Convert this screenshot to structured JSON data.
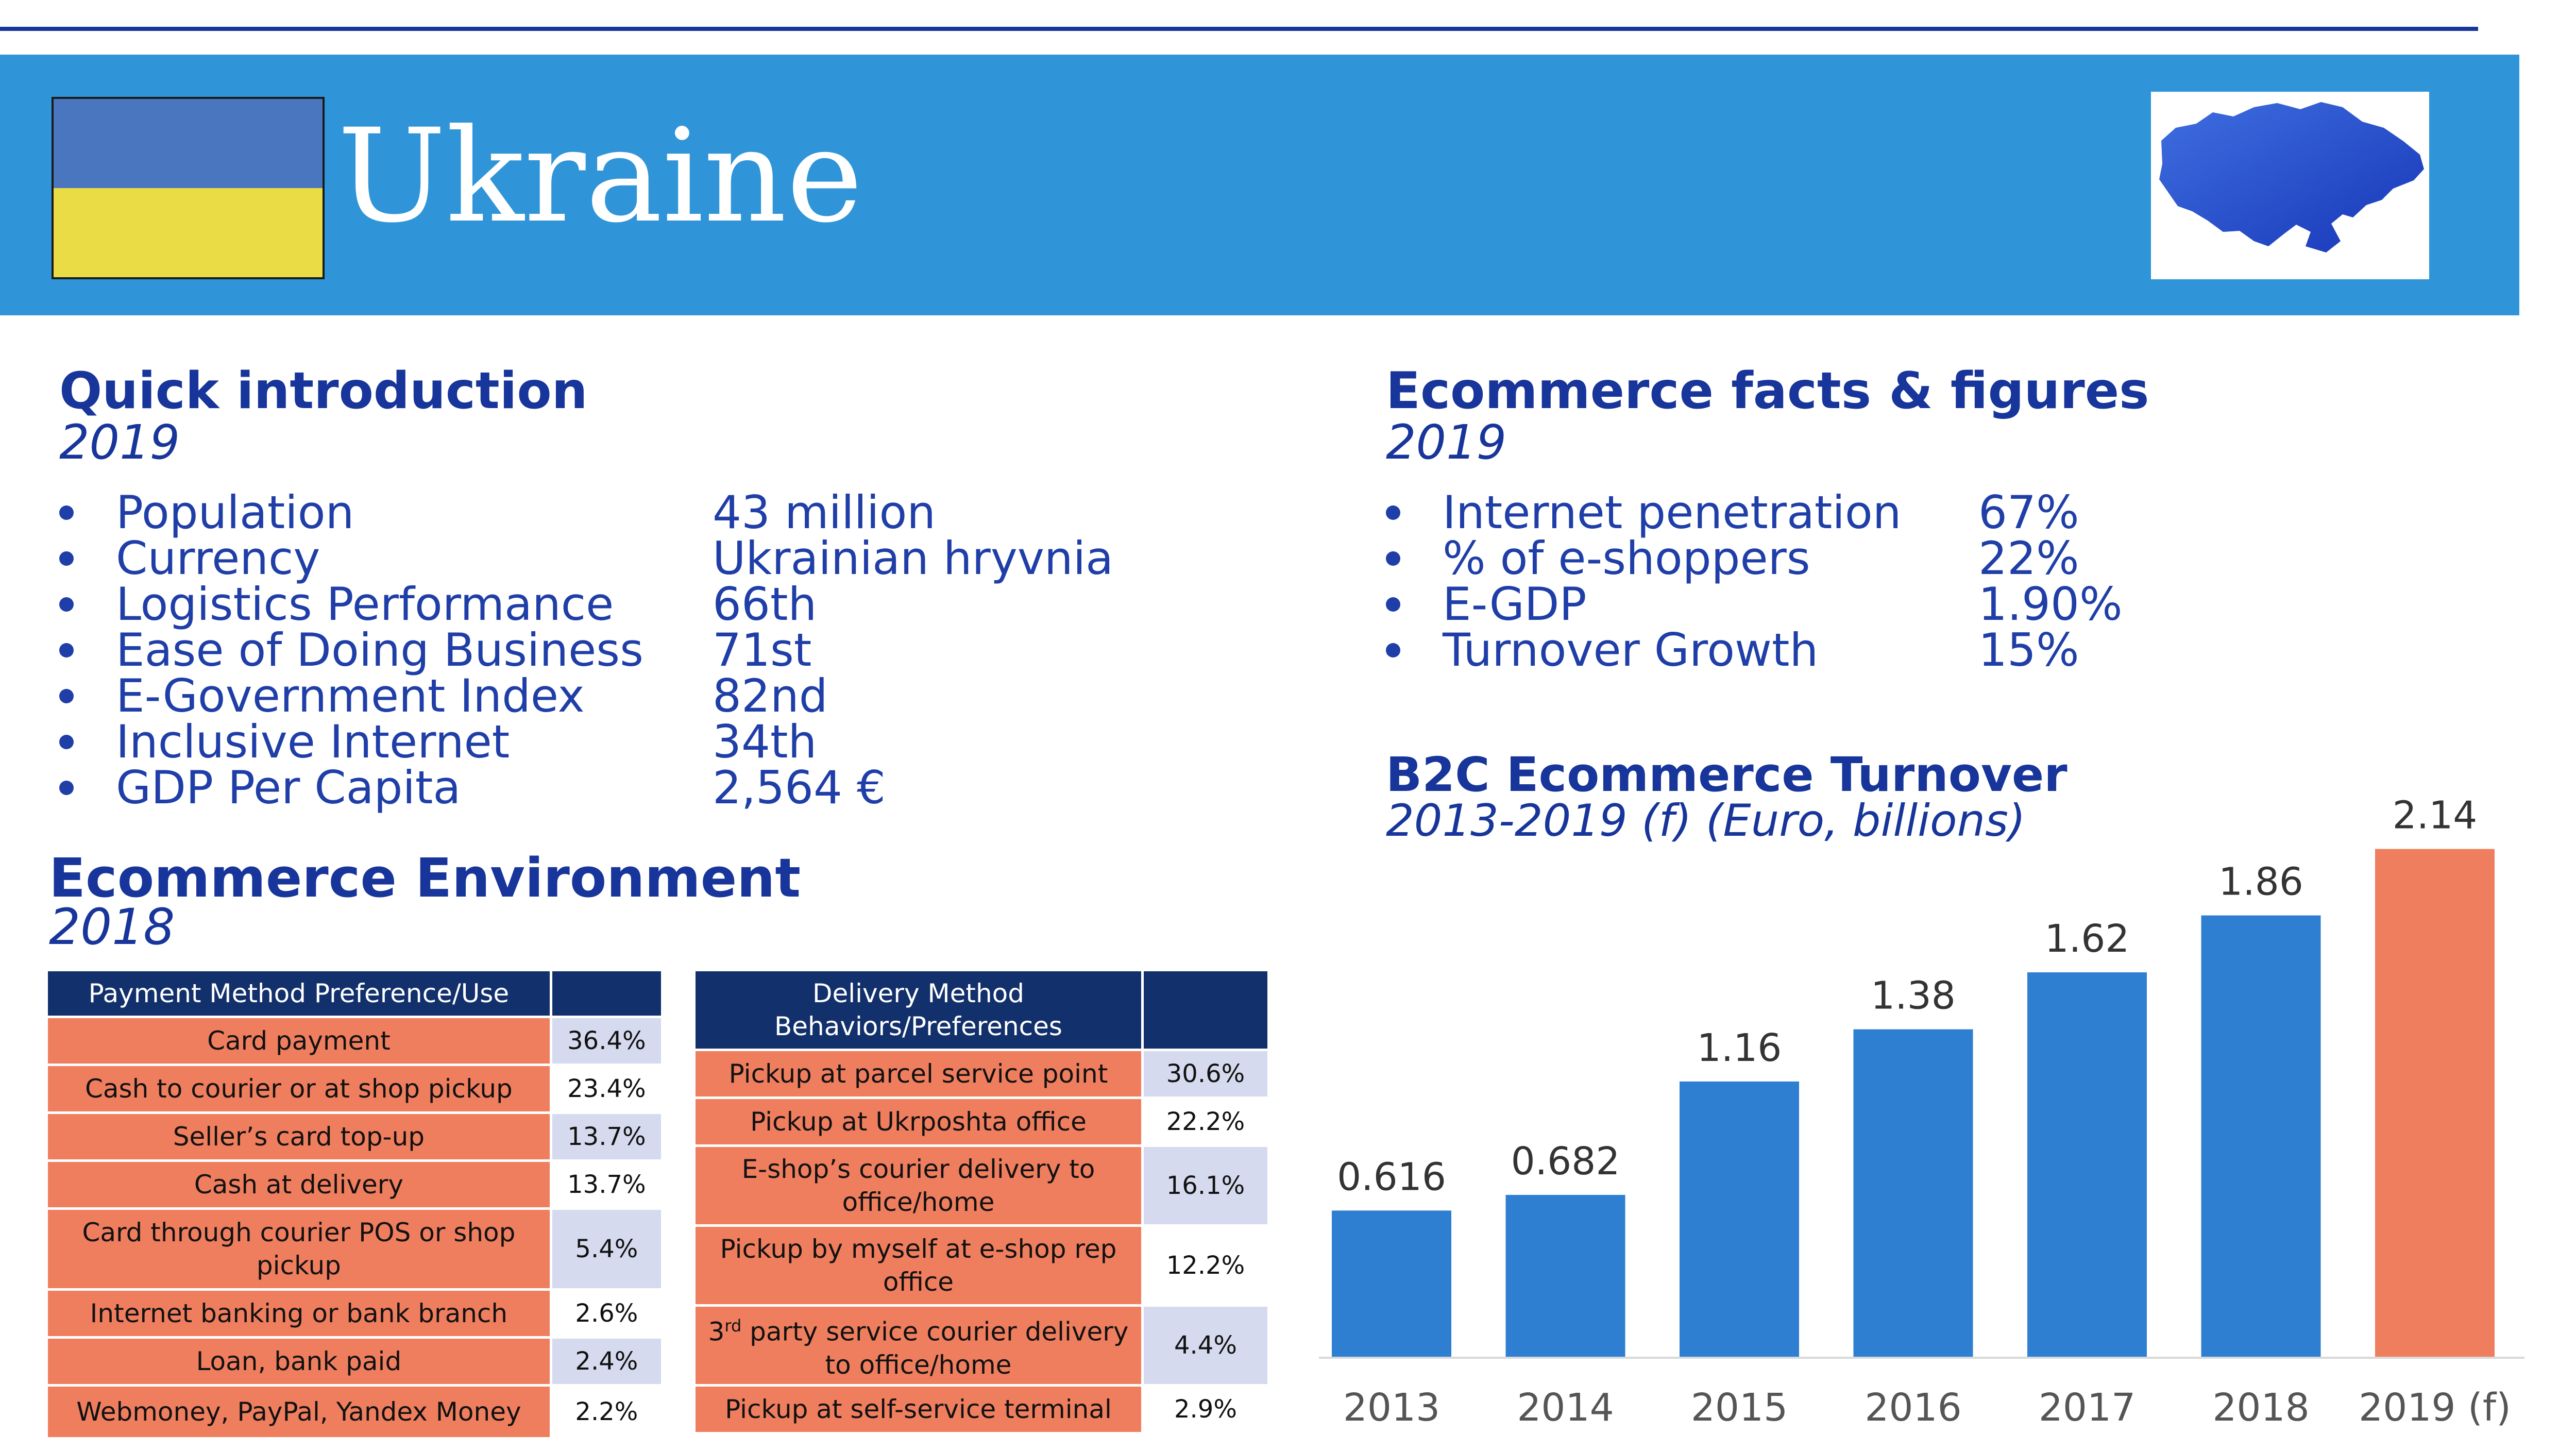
{
  "header": {
    "title": "Ukraine",
    "flag_colors": {
      "top": "#4a76bf",
      "bottom": "#e9dc45"
    },
    "map_icon": "ukraine-map-icon",
    "banner_color": "#2f95d8"
  },
  "quick_intro": {
    "title": "Quick introduction",
    "year": "2019",
    "items": [
      {
        "label": "Population",
        "value": "43 million"
      },
      {
        "label": "Currency",
        "value": "Ukrainian hryvnia"
      },
      {
        "label": "Logistics Performance",
        "value": "66th"
      },
      {
        "label": "Ease of Doing Business",
        "value": "71st"
      },
      {
        "label": "E-Government Index",
        "value": "82nd"
      },
      {
        "label": "Inclusive Internet",
        "value": "34th"
      },
      {
        "label": "GDP Per Capita",
        "value": "2,564 €"
      }
    ]
  },
  "ecom_facts": {
    "title": "Ecommerce facts & figures",
    "year": "2019",
    "items": [
      {
        "label": "Internet penetration",
        "value": "67%"
      },
      {
        "label": "% of e-shoppers",
        "value": "22%"
      },
      {
        "label": "E-GDP",
        "value": "1.90%"
      },
      {
        "label": "Turnover Growth",
        "value": "15%"
      }
    ]
  },
  "environment": {
    "title": "Ecommerce Environment",
    "year": "2018",
    "payment": {
      "header": "Payment Method Preference/Use",
      "rows": [
        {
          "label": "Card payment",
          "value": "36.4%"
        },
        {
          "label": "Cash to courier or at shop pickup",
          "value": "23.4%"
        },
        {
          "label": "Seller’s card top-up",
          "value": "13.7%"
        },
        {
          "label": "Cash at delivery",
          "value": "13.7%"
        },
        {
          "label": "Card through courier POS or shop pickup",
          "value": "5.4%"
        },
        {
          "label": "Internet banking or bank branch",
          "value": "2.6%"
        },
        {
          "label": "Loan, bank paid",
          "value": "2.4%"
        },
        {
          "label": "Webmoney, PayPal, Yandex Money",
          "value": "2.2%"
        }
      ]
    },
    "delivery": {
      "header_line1": "Delivery Method",
      "header_line2": "Behaviors/Preferences",
      "rows": [
        {
          "label": "Pickup at parcel service point",
          "value": "30.6%"
        },
        {
          "label": "Pickup at Ukrposhta office",
          "value": "22.2%"
        },
        {
          "label": "E-shop’s courier delivery to office/home",
          "value": "16.1%"
        },
        {
          "label": "Pickup by myself at e-shop rep office",
          "value": "12.2%"
        },
        {
          "label_pre": "3",
          "label_sup": "rd",
          "label_post": " party service courier delivery to office/home",
          "value": "4.4%"
        },
        {
          "label": "Pickup at self-service terminal",
          "value": "2.9%"
        }
      ]
    }
  },
  "chart_data": {
    "type": "bar",
    "title": "B2C Ecommerce Turnover",
    "subtitle": "2013-2019 (f) (Euro, billions)",
    "categories": [
      "2013",
      "2014",
      "2015",
      "2016",
      "2017",
      "2018",
      "2019 (f)"
    ],
    "values": [
      0.616,
      0.682,
      1.16,
      1.38,
      1.62,
      1.86,
      2.14
    ],
    "value_labels": [
      "0.616",
      "0.682",
      "1.16",
      "1.38",
      "1.62",
      "1.86",
      "2.14"
    ],
    "ylim": [
      0,
      2.2
    ],
    "grid": false,
    "colors": {
      "actual": "#2e7fd1",
      "forecast": "#ef7e5e"
    },
    "forecast_index": 6
  }
}
